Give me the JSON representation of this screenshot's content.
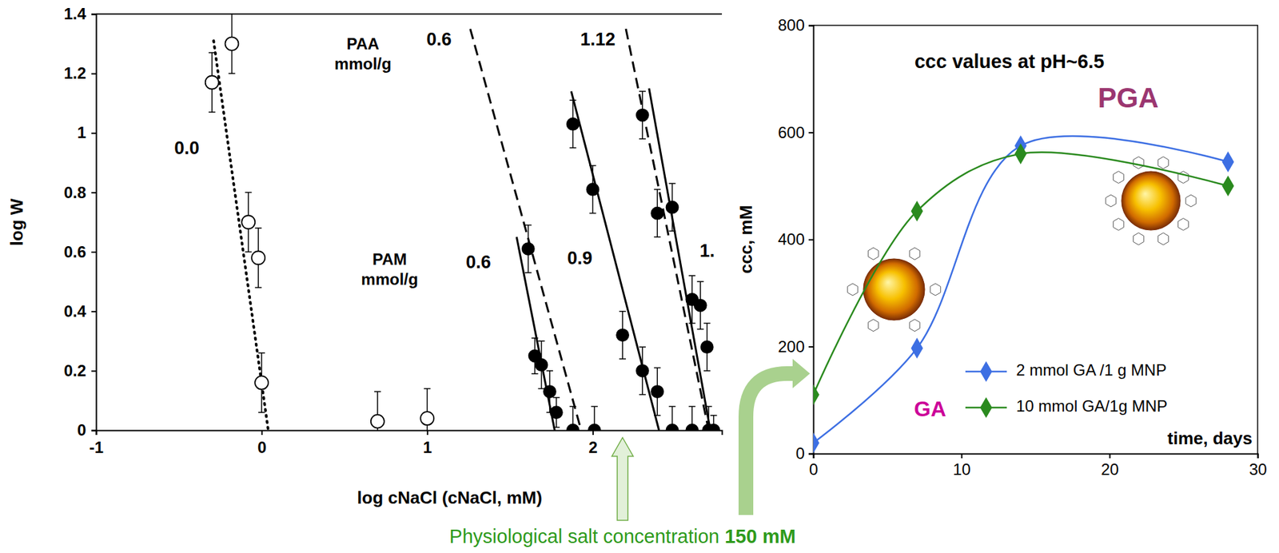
{
  "chart_data": [
    {
      "type": "scatter",
      "xlabel": "log cNaCl (cNaCl, mM)",
      "ylabel": "log W",
      "xlim": [
        -1,
        2.78
      ],
      "ylim": [
        0,
        1.4
      ],
      "xticks": [
        -1,
        0,
        1,
        2
      ],
      "yticks": [
        0,
        0.2,
        0.4,
        0.6,
        0.8,
        1,
        1.2,
        1.4
      ],
      "series": [
        {
          "name": "0.0",
          "type": "line",
          "line_style": "dotted",
          "color": "#000000",
          "x": [
            -0.29,
            0.04
          ],
          "values": [
            1.31,
            0
          ]
        },
        {
          "name": "0.6",
          "type": "line",
          "line_style": "dashed",
          "color": "#000000",
          "x": [
            1.26,
            1.93
          ],
          "values": [
            1.35,
            0
          ]
        },
        {
          "name": "1.12",
          "type": "line",
          "line_style": "dashed",
          "color": "#000000",
          "x": [
            2.2,
            2.7
          ],
          "values": [
            1.35,
            0
          ]
        },
        {
          "name": "0.6",
          "type": "line",
          "line_style": "solid",
          "color": "#000000",
          "x": [
            1.54,
            1.77
          ],
          "values": [
            0.65,
            0
          ]
        },
        {
          "name": "0.9",
          "type": "line",
          "line_style": "solid",
          "color": "#000000",
          "x": [
            1.87,
            2.4
          ],
          "values": [
            1.14,
            0
          ]
        },
        {
          "name": "1.",
          "type": "line",
          "line_style": "solid",
          "color": "#000000",
          "x": [
            2.34,
            2.71
          ],
          "values": [
            1.15,
            0
          ]
        },
        {
          "type": "scatter",
          "marker": "open-circle",
          "color": "#000000",
          "x": [
            -0.3,
            -0.18,
            -0.08,
            -0.02,
            0,
            0.7,
            1
          ],
          "values": [
            1.17,
            1.3,
            0.7,
            0.58,
            0.16,
            0.03,
            0.04
          ],
          "errors": [
            0.1,
            0.1,
            0.1,
            0.1,
            0.1,
            0.1,
            0.1
          ]
        },
        {
          "type": "scatter",
          "marker": "filled-circle",
          "color": "#000000",
          "x": [
            1.61,
            1.65,
            1.69,
            1.74,
            1.78,
            1.88,
            1.88,
            2.0,
            2.01,
            2.18,
            2.3,
            2.39,
            2.3,
            2.39,
            2.48,
            2.48,
            2.6,
            2.65,
            2.69,
            2.6,
            2.7,
            2.73
          ],
          "values": [
            0.61,
            0.25,
            0.22,
            0.13,
            0.06,
            0,
            1.03,
            0.81,
            0,
            0.32,
            0.2,
            0.13,
            1.06,
            0.73,
            0.75,
            0,
            0.44,
            0.42,
            0.28,
            0,
            0,
            0
          ],
          "errors": [
            0.08,
            0.06,
            0.08,
            0.07,
            0.05,
            0.08,
            0.08,
            0.08,
            0.08,
            0.08,
            0.08,
            0.08,
            0.08,
            0.08,
            0.08,
            0.08,
            0.08,
            0.08,
            0.08,
            0.08,
            0.08,
            0.05
          ]
        }
      ],
      "annotations": [
        {
          "text": "PAA mmol/g"
        },
        {
          "text": "PAM mmol/g"
        }
      ],
      "reference": {
        "text": "Physiological salt concentration",
        "value_text": "150 mM",
        "x": 2.18
      }
    },
    {
      "type": "line",
      "title": "ccc values at pH~6.5",
      "xlabel": "time, days",
      "ylabel": "ccc, mM",
      "xlim": [
        0,
        30
      ],
      "ylim": [
        0,
        800
      ],
      "xticks": [
        0,
        10,
        20,
        30
      ],
      "yticks": [
        0,
        200,
        400,
        600,
        800
      ],
      "x": [
        0,
        7,
        14,
        28
      ],
      "series": [
        {
          "name": "2 mmol GA /1 g MNP",
          "color": "#3d6fe3",
          "marker": "diamond",
          "values": [
            20,
            197,
            575,
            545
          ]
        },
        {
          "name": "10 mmol GA/1g MNP",
          "color": "#2a8a1e",
          "marker": "diamond",
          "values": [
            110,
            453,
            560,
            500
          ]
        }
      ],
      "legend": "lower right",
      "annotations": [
        {
          "text": "GA"
        },
        {
          "text": "PGA"
        }
      ]
    }
  ]
}
